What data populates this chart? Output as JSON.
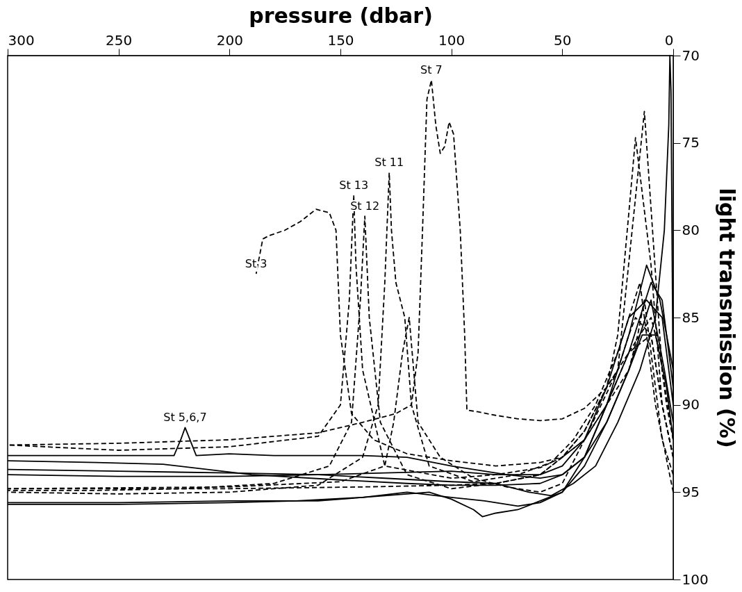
{
  "chart_data": {
    "type": "line",
    "xlabel": "pressure (dbar)",
    "ylabel": "light transmission (%)",
    "xlim": [
      300,
      0
    ],
    "xticks": [
      300,
      250,
      200,
      150,
      100,
      50,
      0
    ],
    "ylim": [
      100,
      70
    ],
    "yticks": [
      70,
      75,
      80,
      85,
      90,
      95,
      100
    ],
    "grid": false,
    "marker": "none",
    "series": [
      {
        "color": "#000000",
        "line_style": "dashed",
        "x": [
          0,
          3,
          6,
          10,
          15,
          20,
          30,
          40,
          50,
          60,
          70,
          80,
          88,
          93,
          94,
          96,
          99,
          101,
          103,
          105,
          107,
          109,
          111,
          113,
          115,
          118,
          125,
          140,
          160,
          200,
          250,
          300
        ],
        "values": [
          92,
          90,
          87,
          85,
          86,
          87,
          89,
          90.2,
          90.8,
          90.9,
          90.8,
          90.6,
          90.4,
          90.3,
          86,
          80,
          74.5,
          73.8,
          75.2,
          75.6,
          74,
          71.4,
          72.5,
          80,
          87,
          90,
          90.5,
          91,
          91.6,
          92,
          92.2,
          92.3
        ]
      },
      {
        "color": "#000000",
        "line_style": "dashed",
        "x": [
          0,
          5,
          10,
          20,
          30,
          40,
          50,
          60,
          80,
          100,
          120,
          135,
          145,
          150,
          152,
          155,
          161,
          168,
          175,
          182,
          185,
          188
        ],
        "values": [
          93,
          90,
          86,
          87,
          90,
          92,
          93,
          93.3,
          93.5,
          93.2,
          92.8,
          92,
          90.5,
          86,
          80,
          79,
          78.8,
          79.5,
          80,
          80.3,
          80.5,
          82.5
        ]
      },
      {
        "color": "#000000",
        "line_style": "dashed",
        "x": [
          0,
          5,
          10,
          13,
          16,
          20,
          30,
          40,
          50,
          60,
          80,
          100,
          130,
          140,
          143,
          144,
          146,
          150,
          160,
          200,
          250,
          300
        ],
        "values": [
          94,
          92,
          87,
          84,
          86,
          88,
          90,
          92,
          93,
          93.6,
          94,
          94.2,
          93.5,
          88,
          82,
          78,
          84,
          90,
          91.8,
          92.4,
          92.6,
          92.3
        ]
      },
      {
        "color": "#000000",
        "line_style": "dashed",
        "x": [
          0,
          5,
          10,
          17,
          20,
          25,
          30,
          40,
          50,
          60,
          80,
          100,
          120,
          132,
          137,
          139,
          141,
          145,
          155,
          180,
          220,
          260,
          300
        ],
        "values": [
          93,
          90,
          86,
          85,
          86,
          88,
          89,
          91.5,
          93,
          94,
          94.5,
          94.8,
          94,
          91,
          85,
          79.2,
          84,
          91,
          93.5,
          94.5,
          94.8,
          94.9,
          94.9
        ]
      },
      {
        "color": "#000000",
        "line_style": "dashed",
        "x": [
          0,
          8,
          15,
          25,
          35,
          45,
          55,
          70,
          90,
          110,
          118,
          121,
          125,
          127,
          128,
          130,
          133,
          140,
          160,
          200,
          250,
          300
        ],
        "values": [
          95,
          90,
          83,
          87,
          90,
          92,
          93.3,
          94,
          94.4,
          93.5,
          90,
          85,
          83,
          80,
          76.7,
          83,
          90,
          93,
          94.6,
          95,
          95.1,
          95
        ]
      },
      {
        "color": "#000000",
        "line_style": "dashed",
        "x": [
          0,
          5,
          13,
          25,
          40,
          50,
          60,
          75,
          90,
          105,
          115,
          119,
          122,
          126,
          130,
          150,
          200,
          300
        ],
        "values": [
          92,
          88,
          73.2,
          88,
          92,
          94.5,
          95,
          94.7,
          94.2,
          93,
          91,
          85,
          87,
          91,
          93.5,
          94.4,
          94.7,
          94.8
        ]
      },
      {
        "color": "#000000",
        "line_style": "dashed",
        "x": [
          0,
          5,
          10,
          17,
          20,
          25,
          30,
          40,
          50,
          60,
          80,
          100,
          140,
          200,
          300
        ],
        "values": [
          93,
          90,
          82,
          74.7,
          79,
          86,
          89,
          91.5,
          93,
          94,
          94.5,
          94.6,
          94.7,
          94.8,
          94.8
        ]
      },
      {
        "color": "#000000",
        "line_style": "solid",
        "x": [
          0,
          1,
          1.5,
          2,
          4,
          8,
          15,
          25,
          35,
          45,
          55,
          65,
          80,
          100,
          130,
          160,
          200,
          250,
          300
        ],
        "values": [
          90,
          72,
          70,
          74,
          80,
          85,
          88,
          91,
          93.5,
          94.5,
          95.2,
          95,
          94.5,
          94.4,
          94.2,
          94,
          93.9,
          93.8,
          93.7
        ]
      },
      {
        "color": "#000000",
        "line_style": "solid",
        "x": [
          0,
          5,
          10,
          15,
          20,
          30,
          40,
          50,
          60,
          70,
          80,
          86,
          90,
          100,
          110,
          130,
          160,
          200,
          250,
          300
        ],
        "values": [
          89,
          84,
          83,
          85,
          87,
          90,
          93,
          95,
          95.5,
          96,
          96.2,
          96.4,
          96,
          95.4,
          95,
          95.2,
          95.5,
          95.5,
          95.6,
          95.6
        ]
      },
      {
        "color": "#000000",
        "line_style": "solid",
        "x": [
          0,
          4,
          10,
          15,
          20,
          30,
          40,
          50,
          60,
          75,
          100,
          120,
          140,
          150,
          180,
          200,
          215,
          220,
          222,
          225,
          260,
          300
        ],
        "values": [
          91,
          88,
          84,
          86,
          88,
          91,
          93,
          94,
          94.2,
          94,
          93.5,
          93,
          92.9,
          92.9,
          92.9,
          92.8,
          92.9,
          91.3,
          92,
          92.9,
          92.9,
          92.9
        ]
      },
      {
        "color": "#000000",
        "line_style": "solid",
        "x": [
          0,
          6,
          12,
          20,
          30,
          40,
          50,
          60,
          80,
          100,
          120,
          150,
          190,
          230,
          260,
          300
        ],
        "values": [
          88,
          84,
          82,
          86,
          90,
          93,
          94,
          94.5,
          94.6,
          94.6,
          94.5,
          94.3,
          94,
          93.4,
          93.3,
          93.2
        ]
      },
      {
        "color": "#000000",
        "line_style": "solid",
        "x": [
          0,
          3,
          8,
          14,
          20,
          30,
          40,
          50,
          60,
          70,
          85,
          100,
          120,
          140,
          170,
          200,
          250,
          300
        ],
        "values": [
          92,
          89,
          86,
          86,
          88,
          91,
          93.5,
          95,
          95.6,
          95.8,
          95.5,
          95.3,
          95,
          95.3,
          95.5,
          95.6,
          95.7,
          95.7
        ]
      },
      {
        "color": "#000000",
        "line_style": "solid",
        "x": [
          0,
          5,
          12,
          20,
          30,
          40,
          50,
          60,
          80,
          100,
          130,
          160,
          200,
          250,
          300
        ],
        "values": [
          90,
          85,
          84,
          85,
          89,
          92,
          93.5,
          94,
          94,
          93.8,
          93.9,
          94,
          94.1,
          94.1,
          94
        ]
      }
    ],
    "annotations": [
      {
        "text": "St 7",
        "x": 109,
        "y": 71.4
      },
      {
        "text": "St 3",
        "x": 188,
        "y": 82.5
      },
      {
        "text": "St 13",
        "x": 144,
        "y": 78
      },
      {
        "text": "St 12",
        "x": 139,
        "y": 79.2
      },
      {
        "text": "St 11",
        "x": 128,
        "y": 76.7
      },
      {
        "text": "St 5,6,7",
        "x": 220,
        "y": 91.3
      }
    ]
  }
}
